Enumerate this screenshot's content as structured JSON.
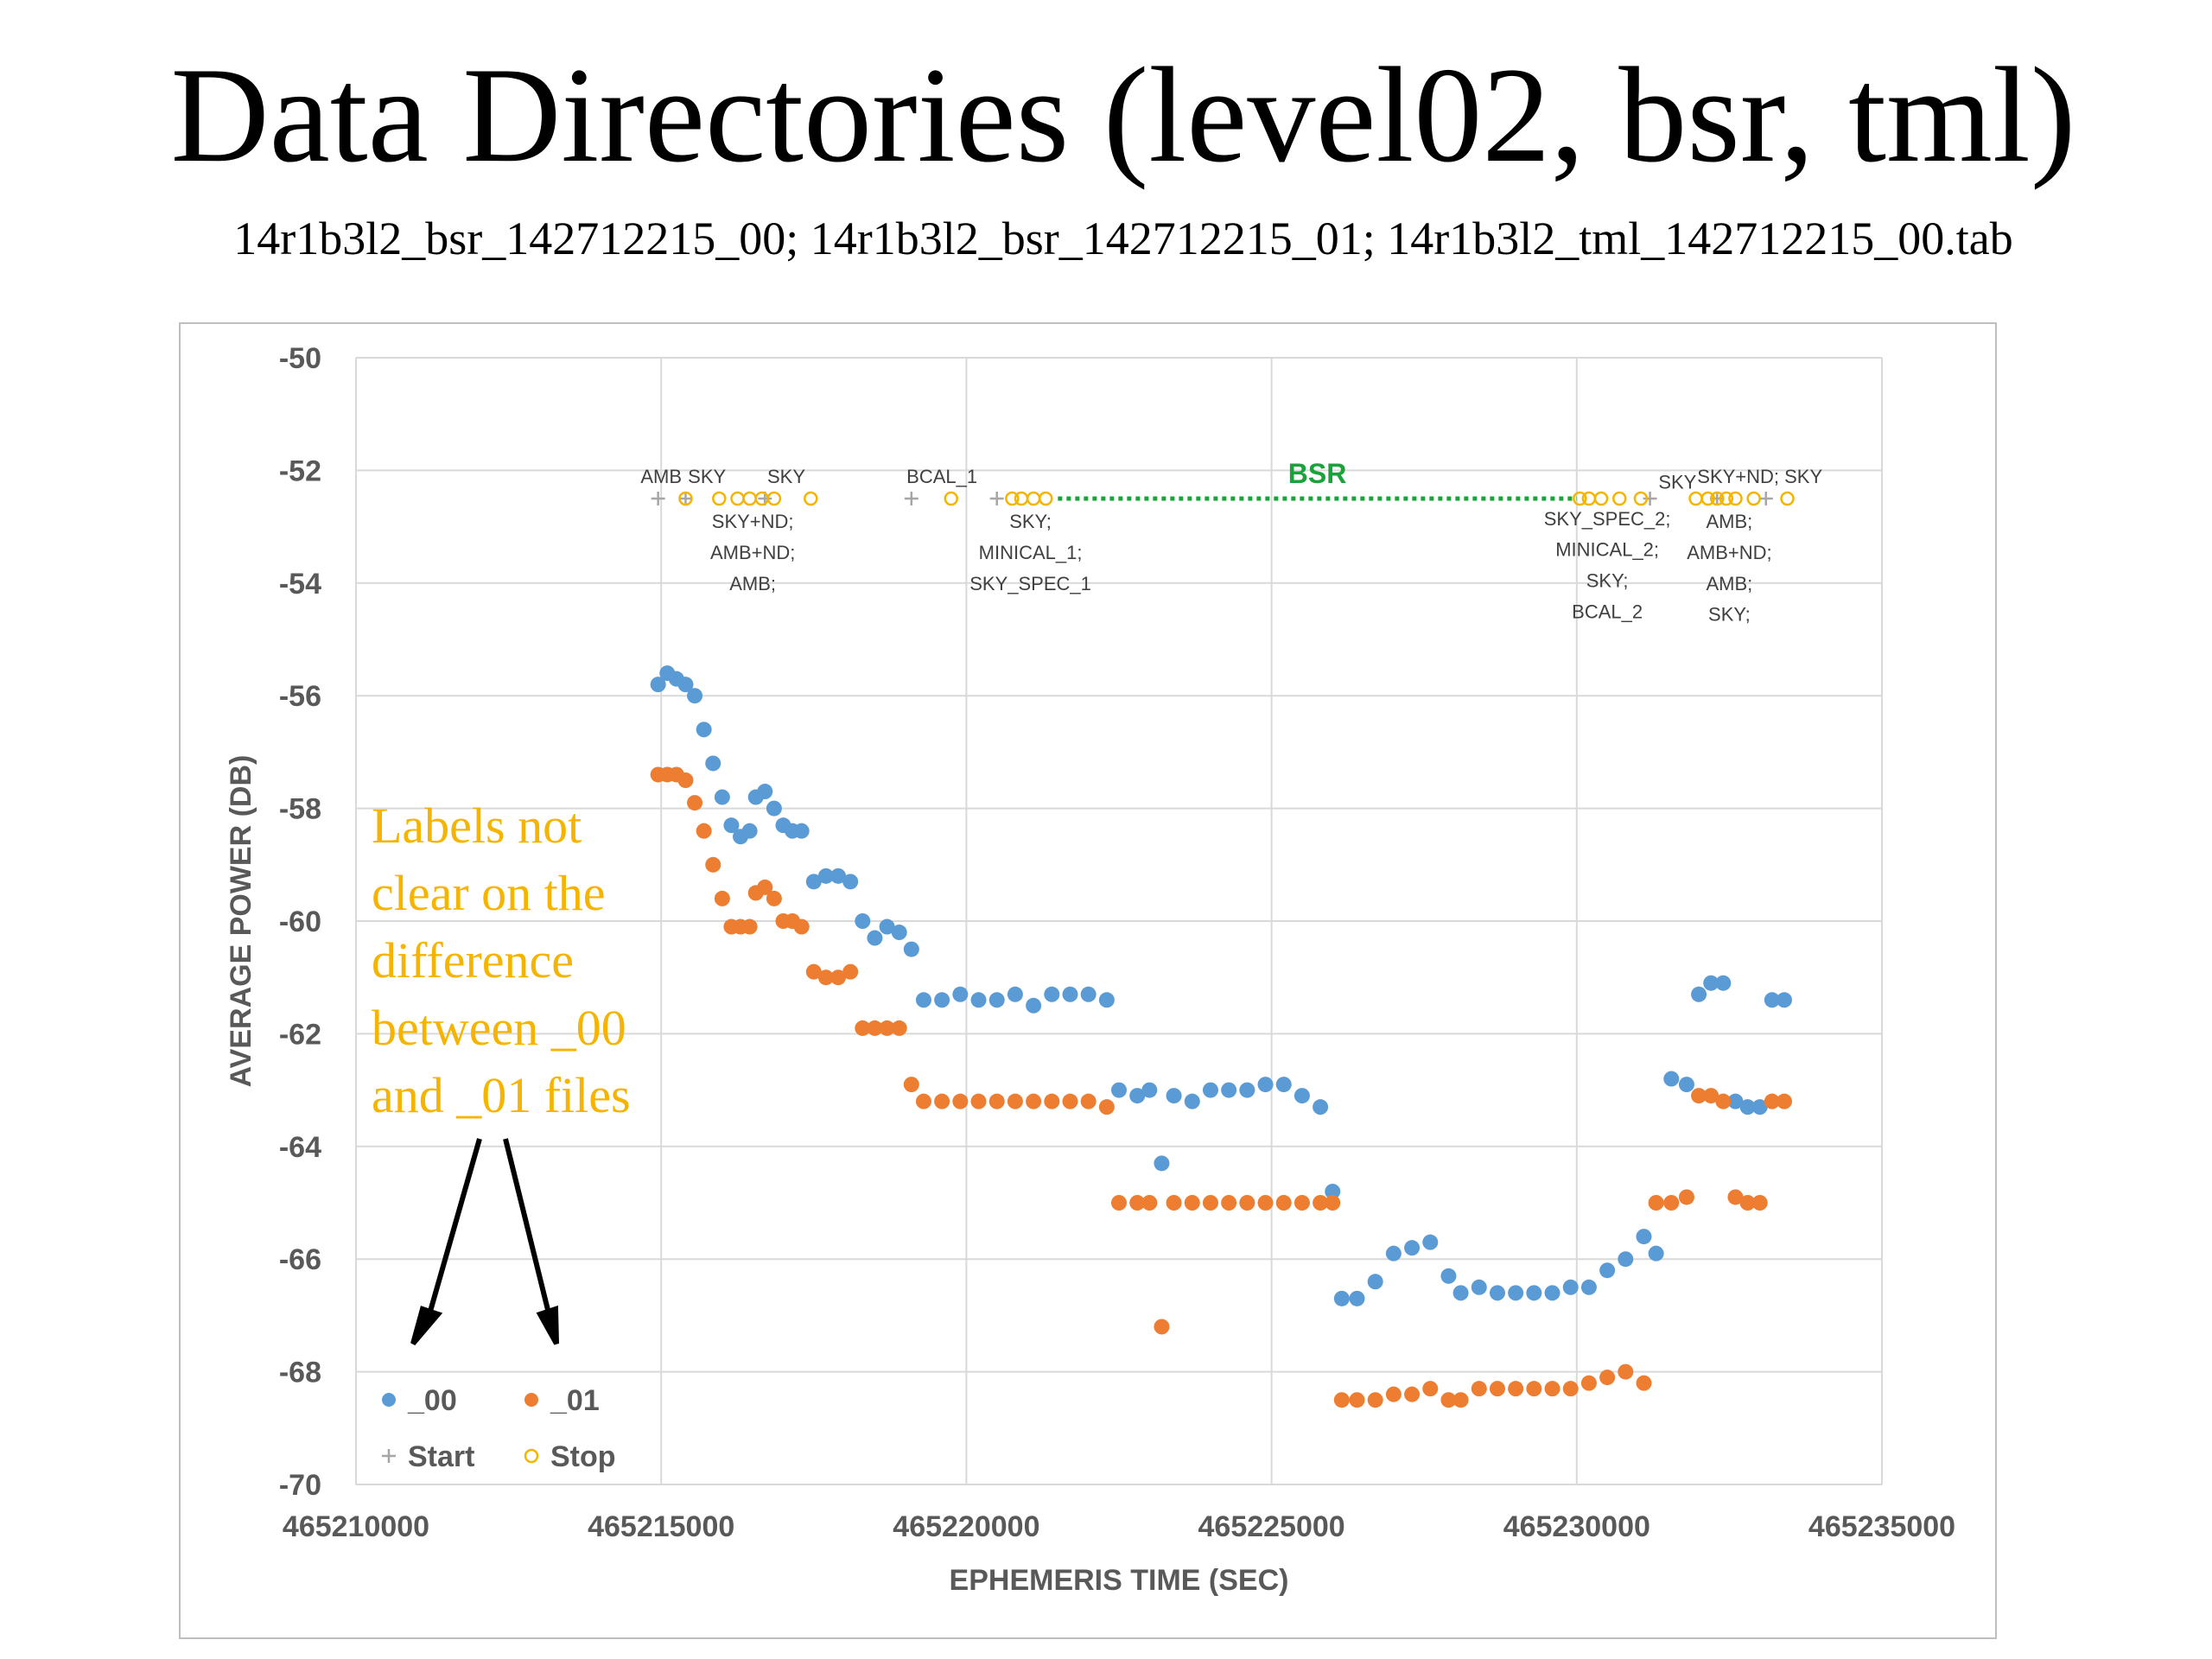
{
  "slide": {
    "title": "Data Directories (level02, bsr, tml)",
    "subtitle": "14r1b3l2_bsr_142712215_00; 14r1b3l2_bsr_142712215_01; 14r1b3l2_tml_142712215_00.tab",
    "note_lines": [
      "Labels not",
      "clear on the",
      "difference",
      "between _00",
      "and _01 files"
    ],
    "colors": {
      "series_00": "#5b9bd5",
      "series_01": "#ed7d31",
      "stop": "#f5b400",
      "start": "#a6a6a6",
      "bsr": "#1aa33a",
      "note": "#f5b400"
    }
  },
  "chart_data": {
    "type": "scatter",
    "xlabel": "EPHEMERIS TIME (SEC)",
    "ylabel": "AVERAGE POWER (DB)",
    "xlim": [
      465210000,
      465235000
    ],
    "ylim": [
      -70,
      -50
    ],
    "xticks": [
      "465210000",
      "465215000",
      "465220000",
      "465225000",
      "465230000",
      "465235000"
    ],
    "yticks": [
      "-50",
      "-52",
      "-54",
      "-56",
      "-58",
      "-60",
      "-62",
      "-64",
      "-66",
      "-68",
      "-70"
    ],
    "grid": true,
    "legend_position": "bottom-left",
    "legend": [
      "_00",
      "_01",
      "Start",
      "Stop"
    ],
    "series": [
      {
        "name": "_00",
        "color": "#5b9bd5",
        "points": [
          [
            465214950,
            -55.8
          ],
          [
            465215100,
            -55.6
          ],
          [
            465215250,
            -55.7
          ],
          [
            465215400,
            -55.8
          ],
          [
            465215550,
            -56.0
          ],
          [
            465215700,
            -56.6
          ],
          [
            465215850,
            -57.2
          ],
          [
            465216000,
            -57.8
          ],
          [
            465216150,
            -58.3
          ],
          [
            465216300,
            -58.5
          ],
          [
            465216450,
            -58.4
          ],
          [
            465216550,
            -57.8
          ],
          [
            465216700,
            -57.7
          ],
          [
            465216850,
            -58.0
          ],
          [
            465217000,
            -58.3
          ],
          [
            465217150,
            -58.4
          ],
          [
            465217300,
            -58.4
          ],
          [
            465217500,
            -59.3
          ],
          [
            465217700,
            -59.2
          ],
          [
            465217900,
            -59.2
          ],
          [
            465218100,
            -59.3
          ],
          [
            465218300,
            -60.0
          ],
          [
            465218500,
            -60.3
          ],
          [
            465218700,
            -60.1
          ],
          [
            465218900,
            -60.2
          ],
          [
            465219100,
            -60.5
          ],
          [
            465219300,
            -61.4
          ],
          [
            465219600,
            -61.4
          ],
          [
            465219900,
            -61.3
          ],
          [
            465220200,
            -61.4
          ],
          [
            465220500,
            -61.4
          ],
          [
            465220800,
            -61.3
          ],
          [
            465221100,
            -61.5
          ],
          [
            465221400,
            -61.3
          ],
          [
            465221700,
            -61.3
          ],
          [
            465222000,
            -61.3
          ],
          [
            465222300,
            -61.4
          ],
          [
            465222500,
            -63.0
          ],
          [
            465222800,
            -63.1
          ],
          [
            465223000,
            -63.0
          ],
          [
            465223200,
            -64.3
          ],
          [
            465223400,
            -63.1
          ],
          [
            465223700,
            -63.2
          ],
          [
            465224000,
            -63.0
          ],
          [
            465224300,
            -63.0
          ],
          [
            465224600,
            -63.0
          ],
          [
            465224900,
            -62.9
          ],
          [
            465225200,
            -62.9
          ],
          [
            465225500,
            -63.1
          ],
          [
            465225800,
            -63.3
          ],
          [
            465226000,
            -64.8
          ],
          [
            465226150,
            -66.7
          ],
          [
            465226400,
            -66.7
          ],
          [
            465226700,
            -66.4
          ],
          [
            465227000,
            -65.9
          ],
          [
            465227300,
            -65.8
          ],
          [
            465227600,
            -65.7
          ],
          [
            465227900,
            -66.3
          ],
          [
            465228100,
            -66.6
          ],
          [
            465228400,
            -66.5
          ],
          [
            465228700,
            -66.6
          ],
          [
            465229000,
            -66.6
          ],
          [
            465229300,
            -66.6
          ],
          [
            465229600,
            -66.6
          ],
          [
            465229900,
            -66.5
          ],
          [
            465230200,
            -66.5
          ],
          [
            465230500,
            -66.2
          ],
          [
            465230800,
            -66.0
          ],
          [
            465231100,
            -65.6
          ],
          [
            465231300,
            -65.9
          ],
          [
            465231550,
            -62.8
          ],
          [
            465231800,
            -62.9
          ],
          [
            465232000,
            -61.3
          ],
          [
            465232200,
            -61.1
          ],
          [
            465232400,
            -61.1
          ],
          [
            465232600,
            -63.2
          ],
          [
            465232800,
            -63.3
          ],
          [
            465233000,
            -63.3
          ],
          [
            465233200,
            -61.4
          ],
          [
            465233400,
            -61.4
          ]
        ]
      },
      {
        "name": "_01",
        "color": "#ed7d31",
        "points": [
          [
            465214950,
            -57.4
          ],
          [
            465215100,
            -57.4
          ],
          [
            465215250,
            -57.4
          ],
          [
            465215400,
            -57.5
          ],
          [
            465215550,
            -57.9
          ],
          [
            465215700,
            -58.4
          ],
          [
            465215850,
            -59.0
          ],
          [
            465216000,
            -59.6
          ],
          [
            465216150,
            -60.1
          ],
          [
            465216300,
            -60.1
          ],
          [
            465216450,
            -60.1
          ],
          [
            465216550,
            -59.5
          ],
          [
            465216700,
            -59.4
          ],
          [
            465216850,
            -59.6
          ],
          [
            465217000,
            -60.0
          ],
          [
            465217150,
            -60.0
          ],
          [
            465217300,
            -60.1
          ],
          [
            465217500,
            -60.9
          ],
          [
            465217700,
            -61.0
          ],
          [
            465217900,
            -61.0
          ],
          [
            465218100,
            -60.9
          ],
          [
            465218300,
            -61.9
          ],
          [
            465218500,
            -61.9
          ],
          [
            465218700,
            -61.9
          ],
          [
            465218900,
            -61.9
          ],
          [
            465219100,
            -62.9
          ],
          [
            465219300,
            -63.2
          ],
          [
            465219600,
            -63.2
          ],
          [
            465219900,
            -63.2
          ],
          [
            465220200,
            -63.2
          ],
          [
            465220500,
            -63.2
          ],
          [
            465220800,
            -63.2
          ],
          [
            465221100,
            -63.2
          ],
          [
            465221400,
            -63.2
          ],
          [
            465221700,
            -63.2
          ],
          [
            465222000,
            -63.2
          ],
          [
            465222300,
            -63.3
          ],
          [
            465222500,
            -65.0
          ],
          [
            465222800,
            -65.0
          ],
          [
            465223000,
            -65.0
          ],
          [
            465223200,
            -67.2
          ],
          [
            465223400,
            -65.0
          ],
          [
            465223700,
            -65.0
          ],
          [
            465224000,
            -65.0
          ],
          [
            465224300,
            -65.0
          ],
          [
            465224600,
            -65.0
          ],
          [
            465224900,
            -65.0
          ],
          [
            465225200,
            -65.0
          ],
          [
            465225500,
            -65.0
          ],
          [
            465225800,
            -65.0
          ],
          [
            465226000,
            -65.0
          ],
          [
            465226150,
            -68.5
          ],
          [
            465226400,
            -68.5
          ],
          [
            465226700,
            -68.5
          ],
          [
            465227000,
            -68.4
          ],
          [
            465227300,
            -68.4
          ],
          [
            465227600,
            -68.3
          ],
          [
            465227900,
            -68.5
          ],
          [
            465228100,
            -68.5
          ],
          [
            465228400,
            -68.3
          ],
          [
            465228700,
            -68.3
          ],
          [
            465229000,
            -68.3
          ],
          [
            465229300,
            -68.3
          ],
          [
            465229600,
            -68.3
          ],
          [
            465229900,
            -68.3
          ],
          [
            465230200,
            -68.2
          ],
          [
            465230500,
            -68.1
          ],
          [
            465230800,
            -68.0
          ],
          [
            465231100,
            -68.2
          ],
          [
            465231300,
            -65.0
          ],
          [
            465231550,
            -65.0
          ],
          [
            465231800,
            -64.9
          ],
          [
            465232000,
            -63.1
          ],
          [
            465232200,
            -63.1
          ],
          [
            465232400,
            -63.2
          ],
          [
            465232600,
            -64.9
          ],
          [
            465232800,
            -65.0
          ],
          [
            465233000,
            -65.0
          ],
          [
            465233200,
            -63.2
          ],
          [
            465233400,
            -63.2
          ]
        ]
      },
      {
        "name": "Start",
        "color": "#a6a6a6",
        "points": [
          [
            465214950,
            -52.5
          ],
          [
            465215400,
            -52.5
          ],
          [
            465216700,
            -52.5
          ],
          [
            465219100,
            -52.5
          ],
          [
            465220500,
            -52.5
          ],
          [
            465231200,
            -52.5
          ],
          [
            465232300,
            -52.5
          ],
          [
            465233100,
            -52.5
          ]
        ]
      },
      {
        "name": "Stop",
        "color": "#f5b400",
        "points": [
          [
            465215400,
            -52.5
          ],
          [
            465215950,
            -52.5
          ],
          [
            465216250,
            -52.5
          ],
          [
            465216450,
            -52.5
          ],
          [
            465216650,
            -52.5
          ],
          [
            465216850,
            -52.5
          ],
          [
            465217450,
            -52.5
          ],
          [
            465219750,
            -52.5
          ],
          [
            465220750,
            -52.5
          ],
          [
            465220900,
            -52.5
          ],
          [
            465221100,
            -52.5
          ],
          [
            465221300,
            -52.5
          ],
          [
            465230050,
            -52.5
          ],
          [
            465230200,
            -52.5
          ],
          [
            465230400,
            -52.5
          ],
          [
            465230700,
            -52.5
          ],
          [
            465231050,
            -52.5
          ],
          [
            465231950,
            -52.5
          ],
          [
            465232150,
            -52.5
          ],
          [
            465232300,
            -52.5
          ],
          [
            465232450,
            -52.5
          ],
          [
            465232600,
            -52.5
          ],
          [
            465232900,
            -52.5
          ],
          [
            465233450,
            -52.5
          ]
        ]
      }
    ],
    "annotations": {
      "bsr": {
        "text": "BSR",
        "x_start": 465221500,
        "x_end": 465230000,
        "y": -52.5
      },
      "modes": [
        {
          "text": "AMB",
          "x": 465215000,
          "y": -52.1
        },
        {
          "text": "SKY",
          "x": 465215750,
          "y": -52.1
        },
        {
          "text": "SKY",
          "x": 465217050,
          "y": -52.1
        },
        {
          "text": "SKY+ND;",
          "x": 465216500,
          "y": -52.9
        },
        {
          "text": "AMB+ND;",
          "x": 465216500,
          "y": -53.45
        },
        {
          "text": "AMB;",
          "x": 465216500,
          "y": -54.0
        },
        {
          "text": "BCAL_1",
          "x": 465219600,
          "y": -52.1
        },
        {
          "text": "SKY;",
          "x": 465221050,
          "y": -52.9
        },
        {
          "text": "MINICAL_1;",
          "x": 465221050,
          "y": -53.45
        },
        {
          "text": "SKY_SPEC_1",
          "x": 465221050,
          "y": -54.0
        },
        {
          "text": "SKY",
          "x": 465231650,
          "y": -52.2
        },
        {
          "text": "SKY+ND; SKY",
          "x": 465233000,
          "y": -52.1
        },
        {
          "text": "SKY_SPEC_2;",
          "x": 465230500,
          "y": -52.85
        },
        {
          "text": "MINICAL_2;",
          "x": 465230500,
          "y": -53.4
        },
        {
          "text": "SKY;",
          "x": 465230500,
          "y": -53.95
        },
        {
          "text": "BCAL_2",
          "x": 465230500,
          "y": -54.5
        },
        {
          "text": "AMB;",
          "x": 465232500,
          "y": -52.9
        },
        {
          "text": "AMB+ND;",
          "x": 465232500,
          "y": -53.45
        },
        {
          "text": "AMB;",
          "x": 465232500,
          "y": -54.0
        },
        {
          "text": "SKY;",
          "x": 465232500,
          "y": -54.55
        }
      ]
    }
  }
}
